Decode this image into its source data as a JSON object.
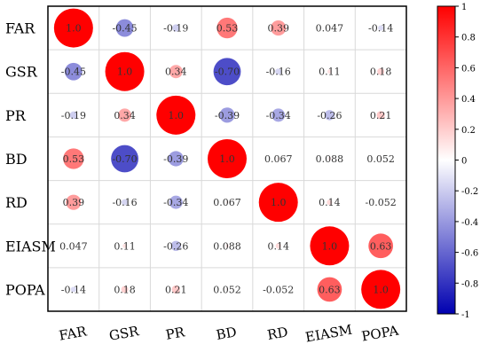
{
  "chart_data": {
    "type": "heatmap",
    "variables": [
      "FAR",
      "GSR",
      "PR",
      "BD",
      "RD",
      "EIASM",
      "POPA"
    ],
    "matrix": [
      [
        1.0,
        -0.45,
        -0.19,
        0.53,
        0.39,
        0.047,
        -0.14
      ],
      [
        -0.45,
        1.0,
        0.34,
        -0.7,
        -0.16,
        0.11,
        0.18
      ],
      [
        -0.19,
        0.34,
        1.0,
        -0.39,
        -0.34,
        -0.26,
        0.21
      ],
      [
        0.53,
        -0.7,
        -0.39,
        1.0,
        0.067,
        0.088,
        0.052
      ],
      [
        0.39,
        -0.16,
        -0.34,
        0.067,
        1.0,
        0.14,
        -0.052
      ],
      [
        0.047,
        0.11,
        -0.26,
        0.088,
        0.14,
        1.0,
        0.63
      ],
      [
        -0.14,
        0.18,
        0.21,
        0.052,
        -0.052,
        0.63,
        1.0
      ]
    ],
    "cell_labels": [
      [
        "1.0",
        "-0.45",
        "-0.19",
        "0.53",
        "0.39",
        "0.047",
        "-0.14"
      ],
      [
        "-0.45",
        "1.0",
        "0.34",
        "-0.70",
        "-0.16",
        "0.11",
        "0.18"
      ],
      [
        "-0.19",
        "0.34",
        "1.0",
        "-0.39",
        "-0.34",
        "-0.26",
        "0.21"
      ],
      [
        "0.53",
        "-0.70",
        "-0.39",
        "1.0",
        "0.067",
        "0.088",
        "0.052"
      ],
      [
        "0.39",
        "-0.16",
        "-0.34",
        "0.067",
        "1.0",
        "0.14",
        "-0.052"
      ],
      [
        "0.047",
        "0.11",
        "-0.26",
        "0.088",
        "0.14",
        "1.0",
        "0.63"
      ],
      [
        "-0.14",
        "0.18",
        "0.21",
        "0.052",
        "-0.052",
        "0.63",
        "1.0"
      ]
    ],
    "colorbar": {
      "ticks": [
        1,
        0.8,
        0.6,
        0.4,
        0.2,
        0,
        -0.2,
        -0.4,
        -0.6,
        -0.8,
        -1
      ],
      "tick_labels": [
        "1",
        "0.8",
        "0.6",
        "0.4",
        "0.2",
        "0",
        "-0.2",
        "-0.4",
        "-0.6",
        "-0.8",
        "-1"
      ],
      "range": [
        -1,
        1
      ],
      "colors": {
        "positive": "#ff0000",
        "neutral": "#ffffff",
        "negative": "#0000b0"
      }
    },
    "grid": true,
    "marker": "circle sized by |r|"
  }
}
